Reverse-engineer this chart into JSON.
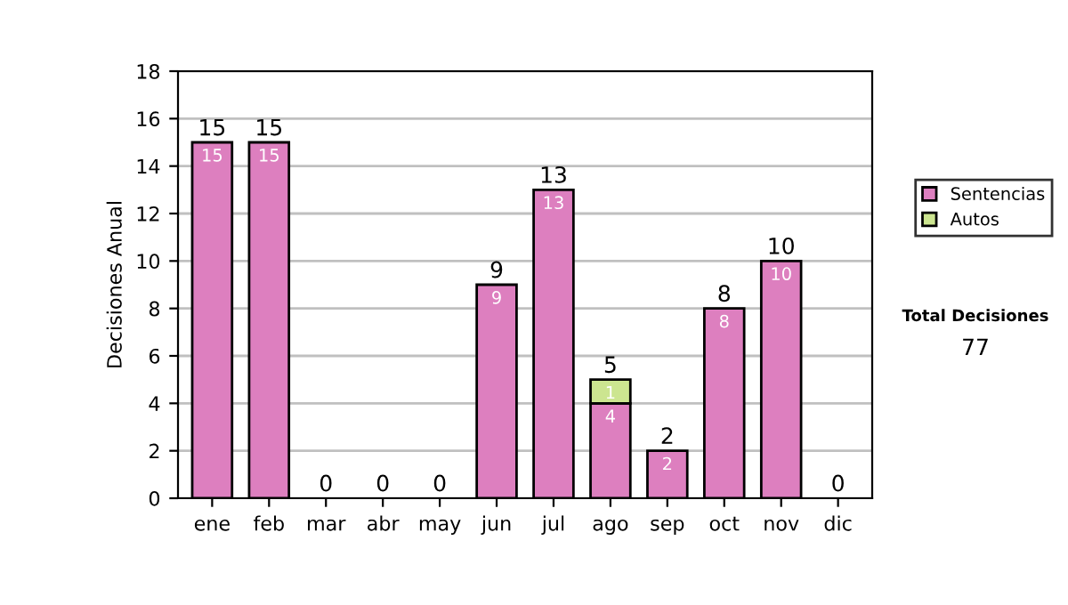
{
  "chart_data": {
    "type": "bar",
    "stacked": true,
    "ylabel": "Decisiones Anual",
    "categories": [
      "ene",
      "feb",
      "mar",
      "abr",
      "may",
      "jun",
      "jul",
      "ago",
      "sep",
      "oct",
      "nov",
      "dic"
    ],
    "series": [
      {
        "name": "Sentencias",
        "color": "#dd7fbf",
        "values": [
          15,
          15,
          0,
          0,
          0,
          9,
          13,
          4,
          2,
          8,
          10,
          0
        ],
        "value_labels": [
          "15",
          "15",
          null,
          null,
          null,
          "9",
          "13",
          "4",
          "2",
          "8",
          "10",
          null
        ]
      },
      {
        "name": "Autos",
        "color": "#cce590",
        "values": [
          0,
          0,
          0,
          0,
          0,
          0,
          0,
          1,
          0,
          0,
          0,
          0
        ],
        "value_labels": [
          null,
          null,
          null,
          null,
          null,
          null,
          null,
          "1",
          null,
          null,
          null,
          null
        ]
      }
    ],
    "totals": [
      "15",
      "15",
      "0",
      "0",
      "0",
      "9",
      "13",
      "5",
      "2",
      "8",
      "10",
      "0"
    ],
    "ylim": [
      0,
      18
    ],
    "yticks": [
      0,
      2,
      4,
      6,
      8,
      10,
      12,
      14,
      16,
      18
    ],
    "grid": "y",
    "legend": "right",
    "annotations": [
      "Total Decisiones",
      "77"
    ]
  }
}
